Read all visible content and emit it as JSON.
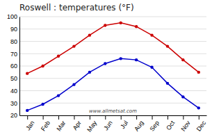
{
  "chart_data": {
    "type": "line",
    "title": "Roswell : temperatures (°F)",
    "categories": [
      "Jan",
      "Feb",
      "Mar",
      "Apr",
      "May",
      "Jun",
      "Jul",
      "Aug",
      "Sep",
      "Oct",
      "Nov",
      "Dec"
    ],
    "series": [
      {
        "color": "#cc0000",
        "marker": "circle",
        "values": [
          54,
          60,
          68,
          76,
          85,
          93,
          95,
          92,
          85,
          76,
          65,
          55
        ]
      },
      {
        "color": "#0000cc",
        "marker": "circle",
        "values": [
          24,
          29,
          36,
          45,
          55,
          62,
          66,
          65,
          59,
          46,
          35,
          26
        ]
      }
    ],
    "ylim": [
      20,
      100
    ],
    "yticks": [
      20,
      30,
      40,
      50,
      60,
      70,
      80,
      90,
      100
    ],
    "grid": true,
    "annotations": [
      "www.allmetsat.com"
    ]
  }
}
